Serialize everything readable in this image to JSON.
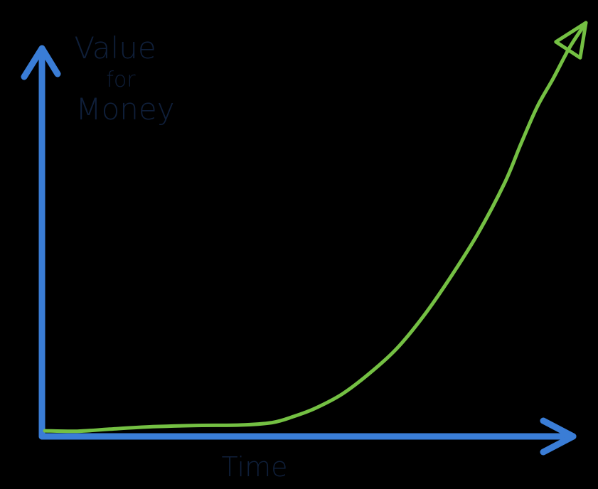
{
  "chart_data": {
    "type": "line",
    "title": "",
    "xlabel": "Time",
    "ylabel_lines": [
      "Value",
      "for",
      "Money"
    ],
    "xlim": [
      0,
      100
    ],
    "ylim": [
      0,
      100
    ],
    "grid": false,
    "legend": "none",
    "axis_ticks": false,
    "series": [
      {
        "values_x": [
          0,
          6,
          12,
          20,
          28,
          36,
          42,
          46,
          50,
          55,
          60,
          65,
          70,
          75,
          80,
          85,
          88,
          91,
          94,
          97,
          100
        ],
        "values_y": [
          0.5,
          0.4,
          0.9,
          1.5,
          1.8,
          1.9,
          2.5,
          4.0,
          6.0,
          9.5,
          14.5,
          20.5,
          28.5,
          38.0,
          48.5,
          61.0,
          70.5,
          79.5,
          86.5,
          94.0,
          100
        ]
      }
    ],
    "colors": {
      "background": "#000000",
      "axes": "#3a7dd6",
      "curve": "#74c043",
      "labels": "#0f1f3a"
    }
  }
}
